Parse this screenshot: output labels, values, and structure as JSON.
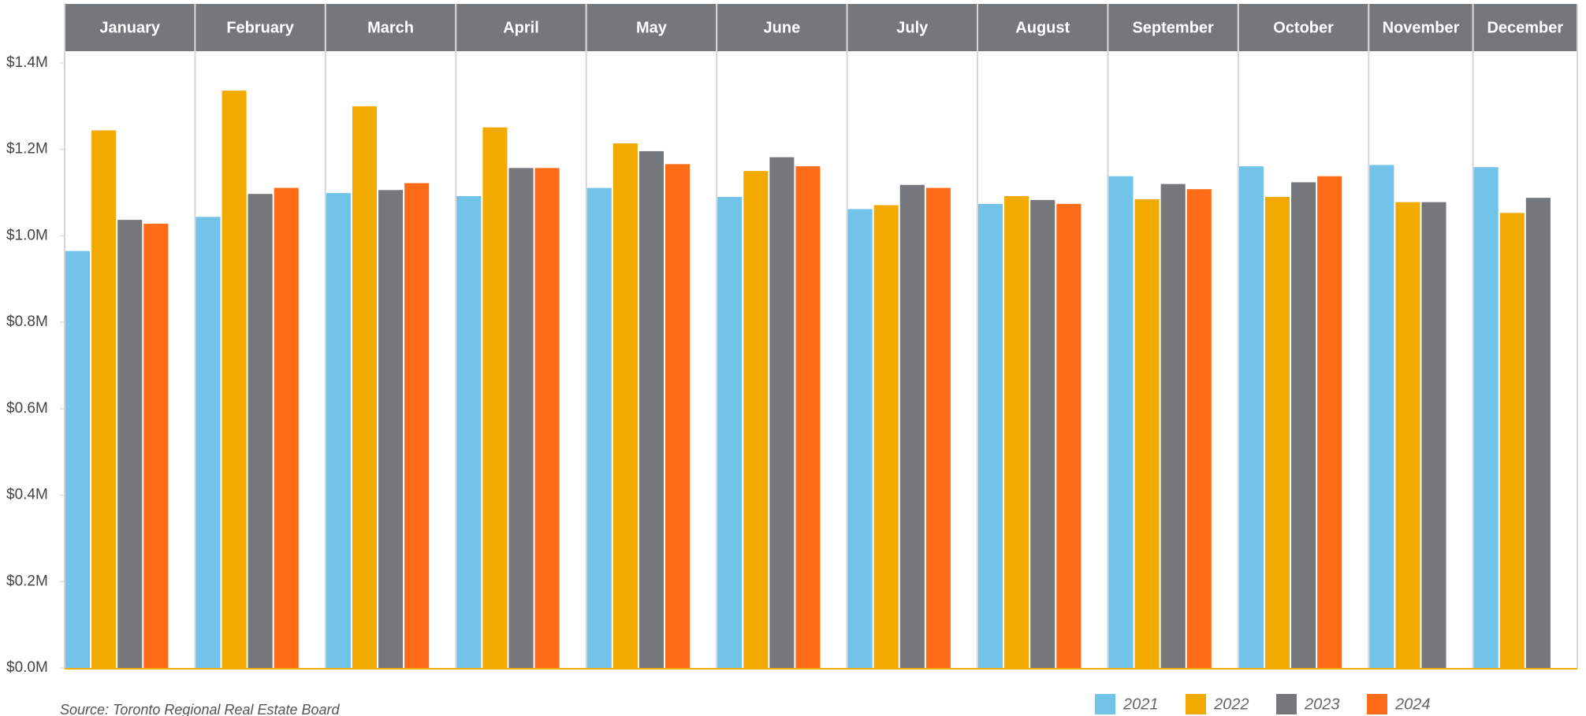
{
  "chart_data": {
    "type": "bar",
    "categories": [
      "January",
      "February",
      "March",
      "April",
      "May",
      "June",
      "July",
      "August",
      "September",
      "October",
      "November",
      "December"
    ],
    "series": [
      {
        "name": "2021",
        "color": "#71c4e8",
        "values": [
          965000,
          1044000,
          1099000,
          1092000,
          1111000,
          1090000,
          1062000,
          1074000,
          1138000,
          1161000,
          1164000,
          1159000
        ]
      },
      {
        "name": "2022",
        "color": "#f2a900",
        "values": [
          1244000,
          1336000,
          1300000,
          1251000,
          1214000,
          1150000,
          1071000,
          1092000,
          1085000,
          1090000,
          1078000,
          1053000
        ]
      },
      {
        "name": "2023",
        "color": "#75787b",
        "values": [
          1037000,
          1097000,
          1106000,
          1157000,
          1196000,
          1182000,
          1118000,
          1083000,
          1120000,
          1124000,
          1078000,
          1088000
        ]
      },
      {
        "name": "2024",
        "color": "#ff6b17",
        "values": [
          1028000,
          1111000,
          1122000,
          1157000,
          1166000,
          1161000,
          1111000,
          1074000,
          1108000,
          1138000,
          null,
          null
        ]
      }
    ],
    "ylim": [
      0,
      1400000
    ],
    "yticks": [
      {
        "value": 0,
        "label": "$0.0M"
      },
      {
        "value": 200000,
        "label": "$0.2M"
      },
      {
        "value": 400000,
        "label": "$0.4M"
      },
      {
        "value": 600000,
        "label": "$0.6M"
      },
      {
        "value": 800000,
        "label": "$0.8M"
      },
      {
        "value": 1000000,
        "label": "$1.0M"
      },
      {
        "value": 1200000,
        "label": "$1.2M"
      },
      {
        "value": 1400000,
        "label": "$1.4M"
      }
    ],
    "source": "Source: Toronto Regional Real Estate Board",
    "legend": "bottom-right"
  }
}
